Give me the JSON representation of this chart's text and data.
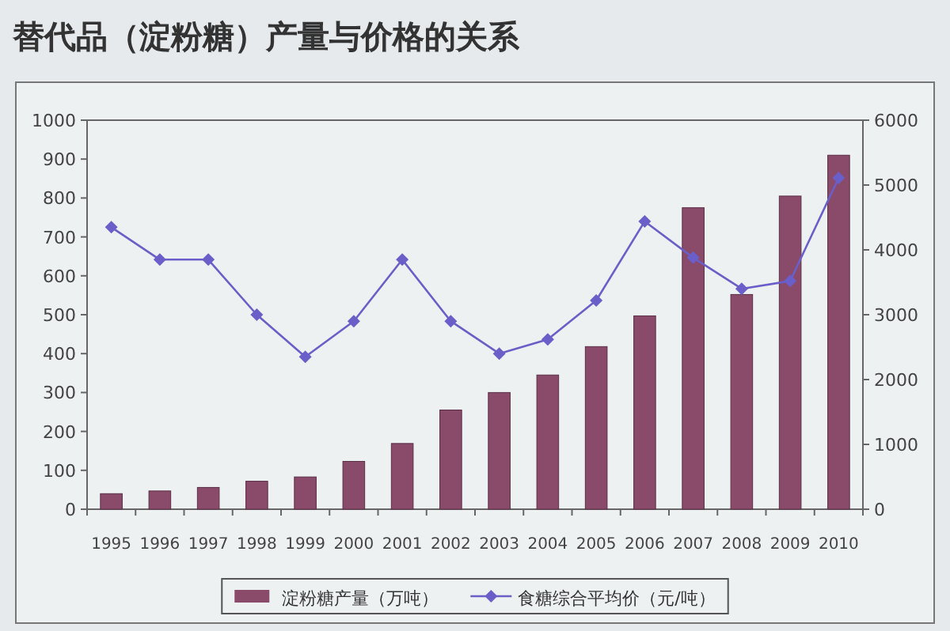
{
  "chart_data": {
    "type": "bar",
    "title": "替代品（淀粉糖）产量与价格的关系",
    "categories": [
      "1995",
      "1996",
      "1997",
      "1998",
      "1999",
      "2000",
      "2001",
      "2002",
      "2003",
      "2004",
      "2005",
      "2006",
      "2007",
      "2008",
      "2009",
      "2010"
    ],
    "series": [
      {
        "name": "淀粉糖产量（万吨）",
        "color": "#8a4a6a",
        "values": [
          40,
          47,
          56,
          72,
          83,
          123,
          169,
          255,
          300,
          345,
          418,
          497,
          775,
          552,
          805,
          910
        ]
      },
      {
        "name": "食糖综合平均价（元/吨）",
        "type": "line",
        "axis": "y2",
        "color": "#6a5fc8",
        "marker": "diamond",
        "values": [
          4350,
          3850,
          3850,
          3000,
          2350,
          2900,
          3850,
          2900,
          2400,
          2620,
          3220,
          4440,
          3880,
          3400,
          3520,
          5110
        ]
      }
    ],
    "ylim": [
      0,
      1000
    ],
    "yticks": [
      0,
      100,
      200,
      300,
      400,
      500,
      600,
      700,
      800,
      900,
      1000
    ],
    "y2lim": [
      0,
      6000
    ],
    "y2ticks": [
      0,
      1000,
      2000,
      3000,
      4000,
      5000,
      6000
    ],
    "legend": "bottom",
    "grid": false
  }
}
